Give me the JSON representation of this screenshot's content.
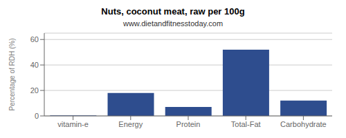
{
  "chart_data": {
    "type": "bar",
    "title": "Nuts, coconut meat, raw per 100g",
    "subtitle": "www.dietandfitnesstoday.com",
    "categories": [
      "vitamin-e",
      "Energy",
      "Protein",
      "Total-Fat",
      "Carbohydrate"
    ],
    "values": [
      0.4,
      18,
      7,
      52,
      12
    ],
    "color": "#2e4d8e",
    "ylabel": "Percentage of RDH (%)",
    "ylim": [
      0,
      65
    ],
    "yticks": [
      0,
      20,
      40,
      60
    ],
    "grid": true
  }
}
